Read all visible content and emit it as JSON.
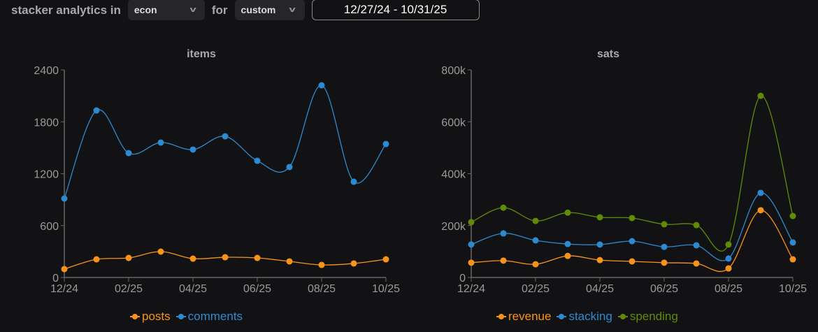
{
  "header": {
    "label": "stacker analytics in",
    "sub_value": "econ",
    "for_label": "for",
    "range_value": "custom",
    "date_range": "12/27/24 - 10/31/25"
  },
  "chart_data": [
    {
      "type": "line",
      "title": "items",
      "ylim": [
        0,
        2400
      ],
      "yticks": [
        "0",
        "600",
        "1200",
        "1800",
        "2400"
      ],
      "ytick_values": [
        0,
        600,
        1200,
        1800,
        2400
      ],
      "x": [
        "12/24",
        "01/25",
        "02/25",
        "03/25",
        "04/25",
        "05/25",
        "06/25",
        "07/25",
        "08/25",
        "09/25",
        "10/25"
      ],
      "xticks": [
        "12/24",
        "02/25",
        "04/25",
        "06/25",
        "08/25",
        "10/25"
      ],
      "series": [
        {
          "name": "posts",
          "color": "#f7931a",
          "values": [
            97,
            210,
            226,
            299,
            218,
            234,
            226,
            186,
            145,
            162,
            210
          ]
        },
        {
          "name": "comments",
          "color": "#2d8ad0",
          "values": [
            913,
            1931,
            1438,
            1560,
            1479,
            1632,
            1349,
            1277,
            2222,
            1107,
            1543
          ]
        }
      ]
    },
    {
      "type": "line",
      "title": "sats",
      "ylim": [
        0,
        800000
      ],
      "yticks": [
        "0",
        "200k",
        "400k",
        "600k",
        "800k"
      ],
      "ytick_values": [
        0,
        200000,
        400000,
        600000,
        800000
      ],
      "x": [
        "12/24",
        "01/25",
        "02/25",
        "03/25",
        "04/25",
        "05/25",
        "06/25",
        "07/25",
        "08/25",
        "09/25",
        "10/25"
      ],
      "xticks": [
        "12/24",
        "02/25",
        "04/25",
        "06/25",
        "08/25",
        "10/25"
      ],
      "series": [
        {
          "name": "revenue",
          "color": "#f7931a",
          "values": [
            57000,
            65000,
            51000,
            83000,
            67000,
            62000,
            57000,
            54000,
            35000,
            259000,
            70000
          ]
        },
        {
          "name": "stacking",
          "color": "#2d8ad0",
          "values": [
            127000,
            170000,
            143000,
            129000,
            127000,
            140000,
            118000,
            124000,
            73000,
            326000,
            135000
          ]
        },
        {
          "name": "spending",
          "color": "#5f8b07",
          "values": [
            213000,
            269000,
            218000,
            250000,
            232000,
            229000,
            205000,
            202000,
            127000,
            700000,
            237000
          ]
        }
      ]
    }
  ]
}
